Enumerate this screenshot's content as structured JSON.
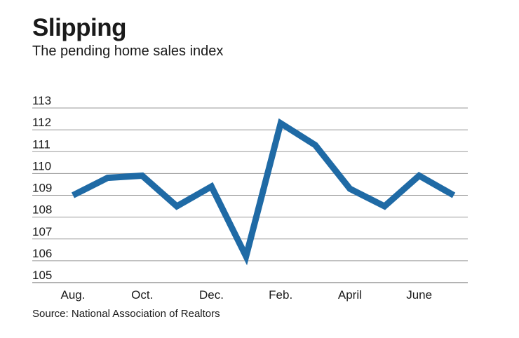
{
  "header": {
    "title": "Slipping",
    "subtitle": "The pending home sales index"
  },
  "footer": {
    "source": "Source: National Association of Realtors"
  },
  "colors": {
    "line": "#1f6aa5",
    "grid": "#9a9a9a"
  },
  "chart_data": {
    "type": "line",
    "title": "Slipping",
    "subtitle": "The pending home sales index",
    "xlabel": "",
    "ylabel": "",
    "ylim": [
      105,
      113
    ],
    "yticks": [
      "105",
      "106",
      "107",
      "108",
      "109",
      "110",
      "111",
      "112",
      "113"
    ],
    "x_tick_labels": [
      "Aug.",
      "Oct.",
      "Dec.",
      "Feb.",
      "April",
      "June"
    ],
    "grid": true,
    "series": [
      {
        "name": "Pending home sales index",
        "x": [
          "Aug.",
          "Sep.",
          "Oct.",
          "Nov.",
          "Dec.",
          "Jan.",
          "Feb.",
          "Mar.",
          "April",
          "May",
          "June",
          "July"
        ],
        "values": [
          109.0,
          109.8,
          109.9,
          108.5,
          109.4,
          106.2,
          112.3,
          111.3,
          109.3,
          108.5,
          109.9,
          109.0
        ]
      }
    ]
  }
}
